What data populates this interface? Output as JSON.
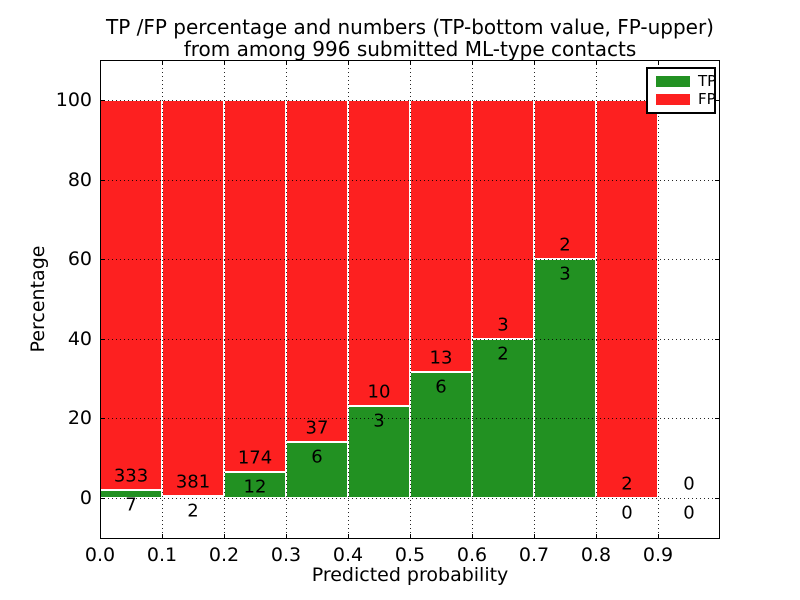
{
  "chart_data": {
    "type": "bar",
    "subtype": "stacked-percentage-histogram",
    "title_line1": "TP /FP percentage and numbers (TP-bottom value, FP-upper)",
    "title_line2": "from among 996 submitted ML-type contacts",
    "x_axis": {
      "label": "Predicted probability",
      "ticks": [
        {
          "label": "0.0",
          "value": 0.0
        },
        {
          "label": "0.1",
          "value": 0.1
        },
        {
          "label": "0.2",
          "value": 0.2
        },
        {
          "label": "0.3",
          "value": 0.3
        },
        {
          "label": "0.4",
          "value": 0.4
        },
        {
          "label": "0.5",
          "value": 0.5
        },
        {
          "label": "0.6",
          "value": 0.6
        },
        {
          "label": "0.7",
          "value": 0.7
        },
        {
          "label": "0.8",
          "value": 0.8
        },
        {
          "label": "0.9",
          "value": 0.9
        }
      ],
      "xlim": [
        0.0,
        1.0
      ]
    },
    "y_axis": {
      "label": "Percentage",
      "ticks": [
        {
          "label": "0",
          "value": 0
        },
        {
          "label": "20",
          "value": 20
        },
        {
          "label": "40",
          "value": 40
        },
        {
          "label": "60",
          "value": 60
        },
        {
          "label": "80",
          "value": 80
        },
        {
          "label": "100",
          "value": 100
        }
      ],
      "ylim": [
        -10.3,
        110.3
      ]
    },
    "grid": true,
    "legend_position": "upper right",
    "legend": [
      {
        "label": "TP",
        "color": "#229122"
      },
      {
        "label": "FP",
        "color": "#fd2020"
      }
    ],
    "bins": [
      {
        "x0": 0.0,
        "x1": 0.1,
        "tp": 7,
        "fp": 333,
        "tp_pct": 2.06
      },
      {
        "x0": 0.1,
        "x1": 0.2,
        "tp": 2,
        "fp": 381,
        "tp_pct": 0.52
      },
      {
        "x0": 0.2,
        "x1": 0.3,
        "tp": 12,
        "fp": 174,
        "tp_pct": 6.45
      },
      {
        "x0": 0.3,
        "x1": 0.4,
        "tp": 6,
        "fp": 37,
        "tp_pct": 13.95
      },
      {
        "x0": 0.4,
        "x1": 0.5,
        "tp": 3,
        "fp": 10,
        "tp_pct": 23.08
      },
      {
        "x0": 0.5,
        "x1": 0.6,
        "tp": 6,
        "fp": 13,
        "tp_pct": 31.58
      },
      {
        "x0": 0.6,
        "x1": 0.7,
        "tp": 2,
        "fp": 3,
        "tp_pct": 40.0
      },
      {
        "x0": 0.7,
        "x1": 0.8,
        "tp": 3,
        "fp": 2,
        "tp_pct": 60.0
      },
      {
        "x0": 0.8,
        "x1": 0.9,
        "tp": 0,
        "fp": 2,
        "tp_pct": 0.0
      },
      {
        "x0": 0.9,
        "x1": 1.0,
        "tp": 0,
        "fp": 0,
        "tp_pct": 0.0
      }
    ],
    "colors": {
      "tp": "#229122",
      "fp": "#fd2020",
      "bar_edge": "#ffffff",
      "text": "#000000",
      "background": "#ffffff"
    }
  }
}
